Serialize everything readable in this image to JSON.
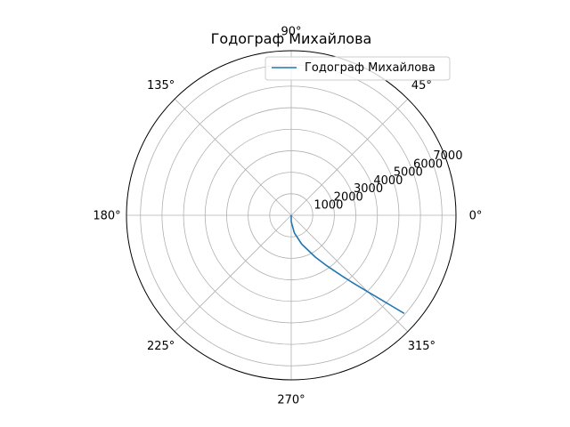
{
  "chart_data": {
    "type": "line",
    "projection": "polar",
    "title": "Годограф Михайлова",
    "theta_unit": "degrees",
    "theta_ticks": [
      0,
      45,
      90,
      135,
      180,
      225,
      270,
      315
    ],
    "theta_tick_labels": [
      "0°",
      "45°",
      "90°",
      "135°",
      "180°",
      "225°",
      "270°",
      "315°"
    ],
    "r_ticks": [
      1000,
      2000,
      3000,
      4000,
      5000,
      6000,
      7000
    ],
    "r_tick_labels": [
      "1000",
      "2000",
      "3000",
      "4000",
      "5000",
      "6000",
      "7000"
    ],
    "rlim": [
      0,
      7650
    ],
    "grid": true,
    "legend_position": "upper-right",
    "series": [
      {
        "name": "Годограф Михайлова",
        "color": "#1f77b4",
        "theta": [
          0,
          270,
          280,
          290,
          300,
          305,
          308,
          310,
          312,
          314,
          315,
          316,
          317,
          318,
          319
        ],
        "r": [
          0,
          300,
          830,
          1430,
          2250,
          2850,
          3310,
          3700,
          4160,
          4700,
          5030,
          5400,
          5830,
          6350,
          6950
        ]
      }
    ]
  }
}
